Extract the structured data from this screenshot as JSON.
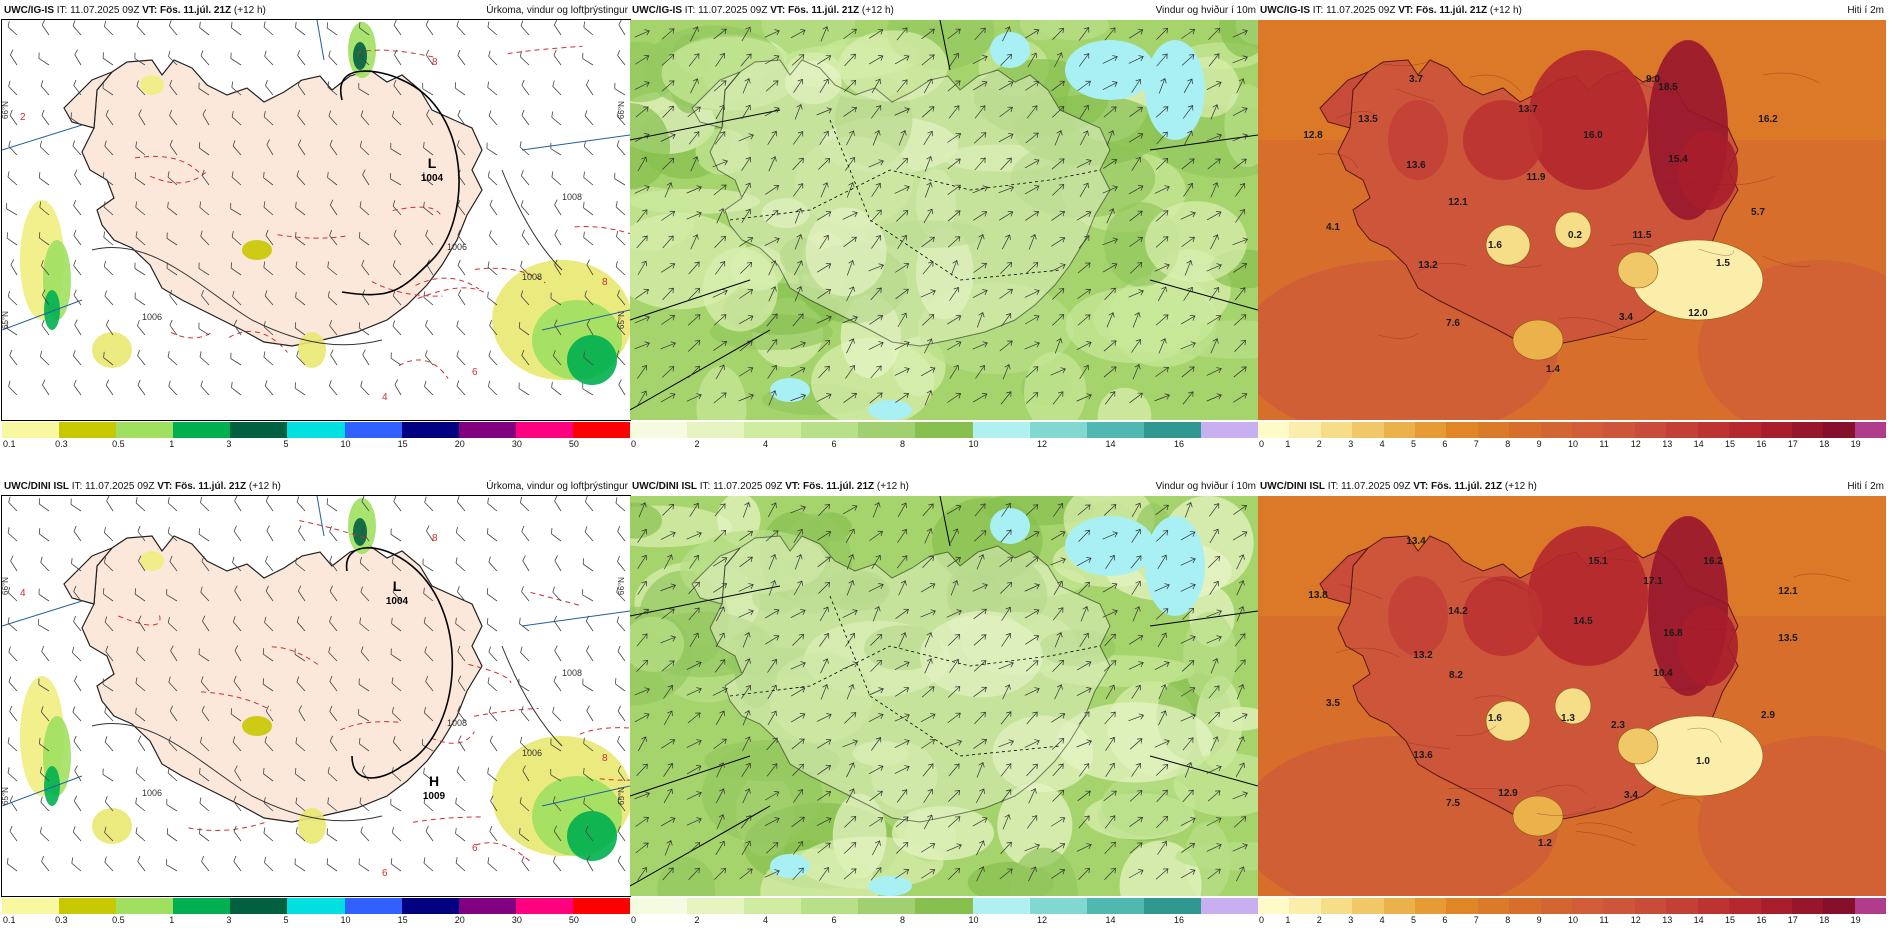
{
  "panels": [
    {
      "model": "UWC/IG-IS",
      "it": "IT: 11.07.2025 09Z",
      "vt": "VT: Fös. 11.júl. 21Z",
      "lead": "(+12 h)",
      "title": "Úrkoma, vindur og loftþrýstingur",
      "type": "precip",
      "legend_ticks": [
        "0.1",
        "0.3",
        "0.5",
        "1",
        "3",
        "5",
        "10",
        "15",
        "20",
        "30",
        "50"
      ],
      "legend_colors": [
        "#f8f8a0",
        "#c8c800",
        "#a0e060",
        "#00b050",
        "#006040",
        "#00e0e0",
        "#3060ff",
        "#000080",
        "#800080",
        "#ff0080",
        "#ff0000"
      ],
      "pressure_labels": [
        {
          "kind": "L",
          "value": "1004"
        }
      ],
      "isobar_labels": [
        "1006",
        "1008",
        "1008",
        "1006"
      ],
      "temp_labels": [
        "8",
        "8",
        "6",
        "4",
        "2"
      ]
    },
    {
      "model": "UWC/IG-IS",
      "it": "IT: 11.07.2025 09Z",
      "vt": "VT: Fös. 11.júl. 21Z",
      "lead": "(+12 h)",
      "title": "Vindur og hviður í 10m",
      "type": "wind",
      "legend_ticks": [
        "0",
        "2",
        "4",
        "6",
        "8",
        "10",
        "12",
        "14",
        "16"
      ],
      "legend_colors": [
        "#f4fbe0",
        "#e6f5c0",
        "#d0eca0",
        "#b8e088",
        "#a0d070",
        "#88c050",
        "#b0f0f0",
        "#80d8d0",
        "#50b8b0",
        "#309890",
        "#c8b0f0"
      ]
    },
    {
      "model": "UWC/IG-IS",
      "it": "IT: 11.07.2025 09Z",
      "vt": "VT: Fös. 11.júl. 21Z",
      "lead": "(+12 h)",
      "title": "Hiti í 2m",
      "type": "temp",
      "legend_ticks": [
        "0",
        "1",
        "2",
        "3",
        "4",
        "5",
        "6",
        "7",
        "8",
        "9",
        "10",
        "11",
        "12",
        "13",
        "14",
        "15",
        "16",
        "17",
        "18",
        "19"
      ],
      "value_labels": [
        "3.7",
        "9.0",
        "18.5",
        "13.7",
        "16.2",
        "12.8",
        "13.5",
        "16.0",
        "13.6",
        "15.4",
        "11.9",
        "12.1",
        "5.7",
        "4.1",
        "1.6",
        "0.2",
        "11.5",
        "13.2",
        "1.5",
        "3.4",
        "12.0",
        "7.6",
        "1.4"
      ]
    },
    {
      "model": "UWC/DINI ISL",
      "it": "IT: 11.07.2025 09Z",
      "vt": "VT: Fös. 11.júl. 21Z",
      "lead": "(+12 h)",
      "title": "Úrkoma, vindur og loftþrýstingur",
      "type": "precip",
      "legend_ticks": [
        "0.1",
        "0.3",
        "0.5",
        "1",
        "3",
        "5",
        "10",
        "15",
        "20",
        "30",
        "50"
      ],
      "legend_colors": [
        "#f8f8a0",
        "#c8c800",
        "#a0e060",
        "#00b050",
        "#006040",
        "#00e0e0",
        "#3060ff",
        "#000080",
        "#800080",
        "#ff0080",
        "#ff0000"
      ],
      "pressure_labels": [
        {
          "kind": "L",
          "value": "1004"
        },
        {
          "kind": "H",
          "value": "1009"
        }
      ],
      "isobar_labels": [
        "1006",
        "1008",
        "1006",
        "1008"
      ],
      "temp_labels": [
        "8",
        "8",
        "6",
        "6",
        "4"
      ]
    },
    {
      "model": "UWC/DINI ISL",
      "it": "IT: 11.07.2025 09Z",
      "vt": "VT: Fös. 11.júl. 21Z",
      "lead": "(+12 h)",
      "title": "Vindur og hviður í 10m",
      "type": "wind",
      "legend_ticks": [
        "0",
        "2",
        "4",
        "6",
        "8",
        "10",
        "12",
        "14",
        "16"
      ],
      "legend_colors": [
        "#f4fbe0",
        "#e6f5c0",
        "#d0eca0",
        "#b8e088",
        "#a0d070",
        "#88c050",
        "#b0f0f0",
        "#80d8d0",
        "#50b8b0",
        "#309890",
        "#c8b0f0"
      ]
    },
    {
      "model": "UWC/DINI ISL",
      "it": "IT: 11.07.2025 09Z",
      "vt": "VT: Fös. 11.júl. 21Z",
      "lead": "(+12 h)",
      "title": "Hiti í 2m",
      "type": "temp",
      "legend_ticks": [
        "0",
        "1",
        "2",
        "3",
        "4",
        "5",
        "6",
        "7",
        "8",
        "9",
        "10",
        "11",
        "12",
        "13",
        "14",
        "15",
        "16",
        "17",
        "18",
        "19"
      ],
      "value_labels": [
        "13.4",
        "15.1",
        "16.2",
        "17.1",
        "12.1",
        "13.8",
        "14.2",
        "14.5",
        "16.8",
        "13.5",
        "13.2",
        "8.2",
        "10.4",
        "3.5",
        "1.6",
        "1.3",
        "2.3",
        "2.9",
        "13.6",
        "1.0",
        "12.9",
        "7.5",
        "3.4",
        "1.2"
      ]
    }
  ],
  "lat_labels": [
    "66°N",
    "65°N"
  ],
  "temp_colors": [
    "#fffbc8",
    "#fbeeaa",
    "#f6dd88",
    "#f0c868",
    "#ebb24c",
    "#e69b34",
    "#e08626",
    "#db7a28",
    "#d76e2c",
    "#d36532",
    "#d05d38",
    "#cd553a",
    "#c94b3a",
    "#c44036",
    "#bd3332",
    "#b4282e",
    "#a81e2c",
    "#98162c",
    "#86102c",
    "#b03c8c"
  ],
  "colors": {
    "land_precip": "#fbe8da",
    "sea_precip": "#ffffff",
    "isobar": "#000000",
    "temp_contour": "#d03030",
    "gridline": "#2060a0"
  }
}
